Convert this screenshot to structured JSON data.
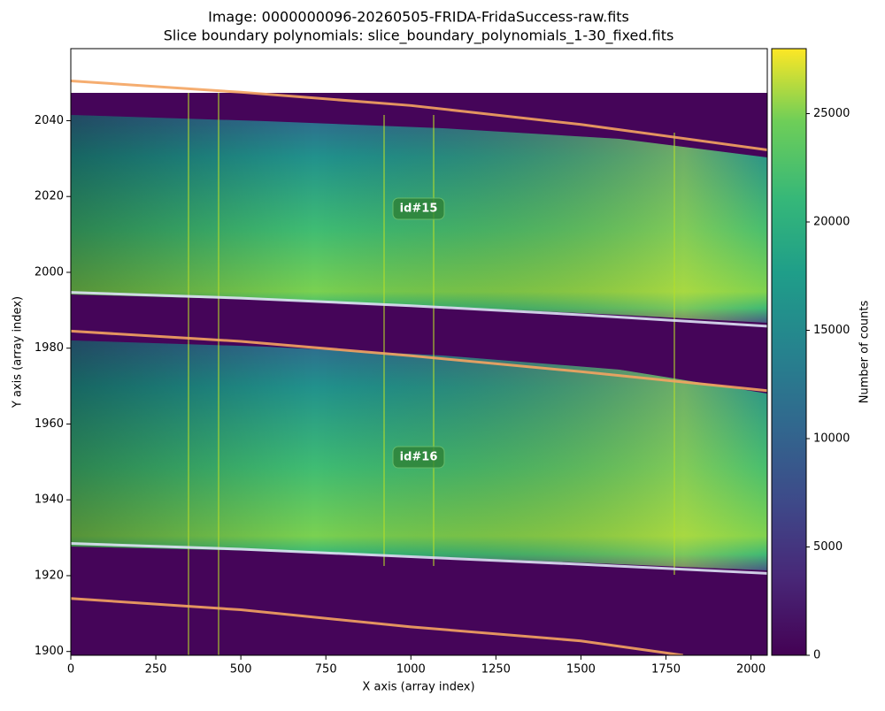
{
  "chart_data": {
    "type": "image",
    "title": "Image: 0000000096-20260505-FRIDA-FridaSuccess-raw.fits",
    "subtitle": "Slice boundary polynomials: slice_boundary_polynomials_1-30_fixed.fits",
    "x_label": "X axis (array index)",
    "y_label": "Y axis (array index)",
    "colorbar_label": "Number of counts",
    "xlim": [
      0,
      2048
    ],
    "xticks": [
      0,
      250,
      500,
      750,
      1000,
      1250,
      1500,
      1750,
      2000
    ],
    "ylim": [
      1899,
      2059
    ],
    "yticks": [
      1900,
      1920,
      1940,
      1960,
      1980,
      2000,
      2020,
      2040
    ],
    "clim": [
      0,
      28000
    ],
    "cticks": [
      0,
      5000,
      10000,
      15000,
      20000,
      25000
    ],
    "annotations": [
      "id#15",
      "id#16"
    ],
    "series": [
      {
        "color": "#f4a460",
        "x": [
          0,
          500,
          1000,
          1500,
          2048
        ],
        "values": [
          2050.5,
          2047.5,
          2044,
          2039,
          2032.3
        ]
      },
      {
        "color": "#dde2f4",
        "x": [
          0,
          500,
          1000,
          1500,
          2048
        ],
        "values": [
          1994.7,
          1993.2,
          1991.2,
          1988.8,
          1985.8
        ]
      },
      {
        "color": "#f4a460",
        "x": [
          0,
          500,
          1000,
          1500,
          2048
        ],
        "values": [
          1984.5,
          1981.8,
          1978,
          1973.8,
          1968.8
        ]
      },
      {
        "color": "#dde2f4",
        "x": [
          0,
          500,
          1000,
          1500,
          2048
        ],
        "values": [
          1928.5,
          1927,
          1925,
          1923,
          1920.6
        ]
      },
      {
        "color": "#f4a460",
        "x": [
          0,
          500,
          1000,
          1500,
          1800
        ],
        "values": [
          1914,
          1911,
          1906.5,
          1902.8,
          1899
        ]
      }
    ]
  }
}
